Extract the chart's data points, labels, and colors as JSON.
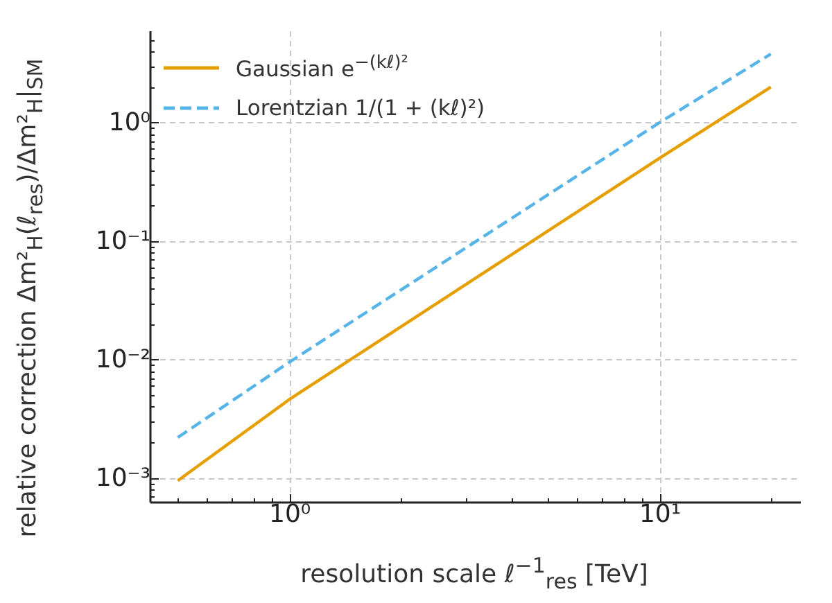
{
  "chart_data": {
    "type": "line",
    "xlabel": "resolution scale ℓ$^{−1}$$_{res}$  [TeV]",
    "ylabel": "relative correction  Δm²$_{H}$(ℓ$_{res}$)/Δm²$_{H}$|$_{SM}$",
    "series": [
      {
        "name": "Gaussian  e$^{−(kℓ)²}$",
        "color": "#e69f00",
        "line_style": "solid",
        "x": [
          0.5,
          1,
          10,
          20
        ],
        "values": [
          0.00095,
          0.0046,
          0.5,
          2.0
        ]
      },
      {
        "name": "Lorentzian 1/(1 + (kℓ)²)",
        "color": "#56b4e9",
        "line_style": "dashed",
        "x": [
          0.5,
          1,
          10,
          20
        ],
        "values": [
          0.0022,
          0.0095,
          1.0,
          3.8
        ]
      }
    ],
    "log": "xy",
    "grid": true,
    "legend": "top left",
    "marker": "none",
    "xlim": [
      0.42,
      24
    ],
    "ylim": [
      0.00063,
      6
    ],
    "xticks": [
      {
        "value": 0.5,
        "label": null
      },
      {
        "value": 0.6,
        "label": null
      },
      {
        "value": 0.7,
        "label": null
      },
      {
        "value": 0.8,
        "label": null
      },
      {
        "value": 0.9,
        "label": null
      },
      {
        "value": 1,
        "label": "10⁰"
      },
      {
        "value": 2,
        "label": null
      },
      {
        "value": 3,
        "label": null
      },
      {
        "value": 4,
        "label": null
      },
      {
        "value": 5,
        "label": null
      },
      {
        "value": 6,
        "label": null
      },
      {
        "value": 7,
        "label": null
      },
      {
        "value": 8,
        "label": null
      },
      {
        "value": 9,
        "label": null
      },
      {
        "value": 10,
        "label": "10¹"
      },
      {
        "value": 20,
        "label": null
      }
    ],
    "yticks": [
      {
        "value": 0.0007,
        "label": null
      },
      {
        "value": 0.0008,
        "label": null
      },
      {
        "value": 0.0009,
        "label": null
      },
      {
        "value": 0.001,
        "label": "10⁻³"
      },
      {
        "value": 0.002,
        "label": null
      },
      {
        "value": 0.003,
        "label": null
      },
      {
        "value": 0.004,
        "label": null
      },
      {
        "value": 0.005,
        "label": null
      },
      {
        "value": 0.006,
        "label": null
      },
      {
        "value": 0.007,
        "label": null
      },
      {
        "value": 0.008,
        "label": null
      },
      {
        "value": 0.009,
        "label": null
      },
      {
        "value": 0.01,
        "label": "10⁻²"
      },
      {
        "value": 0.02,
        "label": null
      },
      {
        "value": 0.03,
        "label": null
      },
      {
        "value": 0.04,
        "label": null
      },
      {
        "value": 0.05,
        "label": null
      },
      {
        "value": 0.06,
        "label": null
      },
      {
        "value": 0.07,
        "label": null
      },
      {
        "value": 0.08,
        "label": null
      },
      {
        "value": 0.09,
        "label": null
      },
      {
        "value": 0.1,
        "label": "10⁻¹"
      },
      {
        "value": 0.2,
        "label": null
      },
      {
        "value": 0.3,
        "label": null
      },
      {
        "value": 0.4,
        "label": null
      },
      {
        "value": 0.5,
        "label": null
      },
      {
        "value": 0.6,
        "label": null
      },
      {
        "value": 0.7,
        "label": null
      },
      {
        "value": 0.8,
        "label": null
      },
      {
        "value": 0.9,
        "label": null
      },
      {
        "value": 1,
        "label": "10⁰"
      },
      {
        "value": 2,
        "label": null
      },
      {
        "value": 3,
        "label": null
      },
      {
        "value": 4,
        "label": null
      },
      {
        "value": 5,
        "label": null
      }
    ]
  }
}
